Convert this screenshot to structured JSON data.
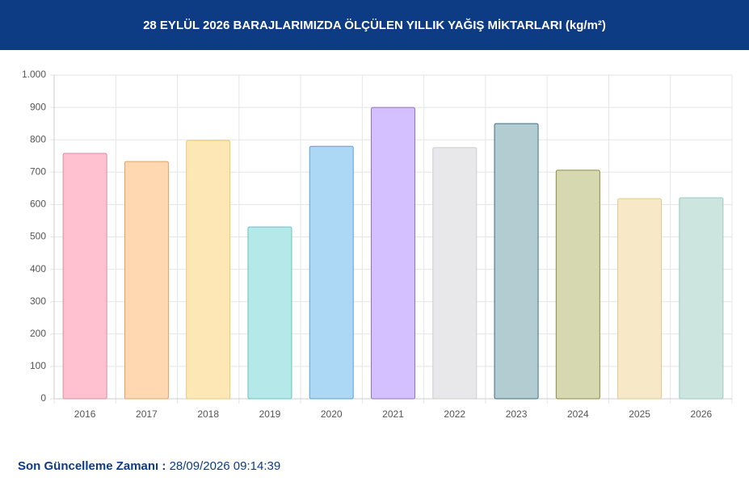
{
  "chart_data": {
    "type": "bar",
    "title": "28 EYLÜL 2026 BARAJLARIMIZDA ÖLÇÜLEN YILLIK YAĞIŞ MİKTARLARI (kg/m²)",
    "categories": [
      "2016",
      "2017",
      "2018",
      "2019",
      "2020",
      "2021",
      "2022",
      "2023",
      "2024",
      "2025",
      "2026"
    ],
    "values": [
      758,
      733,
      798,
      531,
      780,
      900,
      776,
      850,
      706,
      618,
      621
    ],
    "colors": [
      "#ffc1d0",
      "#ffd8b1",
      "#fde8b5",
      "#b5e8e8",
      "#acd8f5",
      "#d5c0ff",
      "#e8e8ea",
      "#b3ccd2",
      "#d6d9b0",
      "#f7e8c8",
      "#cce6df"
    ],
    "border_colors": [
      "#e08aa0",
      "#e0a060",
      "#e8c870",
      "#66c4c4",
      "#5aa0d0",
      "#9070d0",
      "#cccccc",
      "#3a7080",
      "#8a8a40",
      "#e0c890",
      "#9cc8bc"
    ],
    "ylim": [
      0,
      1000
    ],
    "yticks": [
      0,
      100,
      200,
      300,
      400,
      500,
      600,
      700,
      800,
      900,
      {
        "value": 1000,
        "label": "1.000"
      }
    ],
    "grid": true
  },
  "footer": {
    "label": "Son Güncelleme Zamanı :",
    "time": "28/09/2026 09:14:39"
  }
}
